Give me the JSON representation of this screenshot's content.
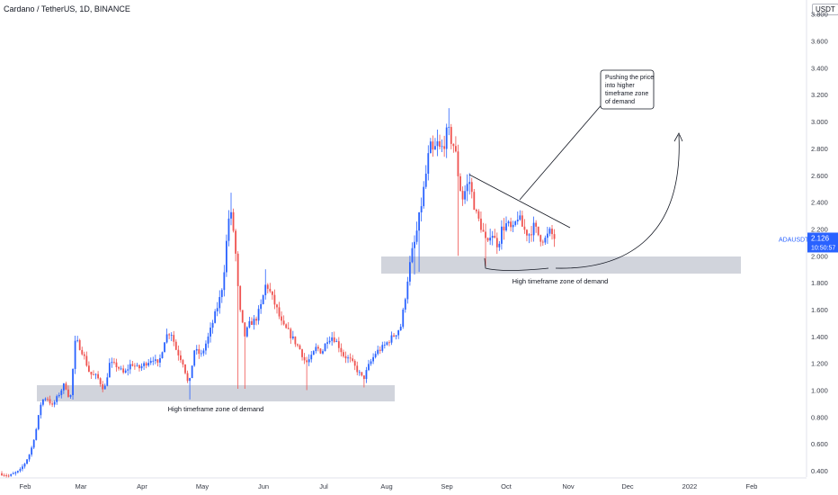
{
  "header": {
    "title": "Cardano / TetherUS, 1D, BINANCE",
    "currency": "USDT"
  },
  "colors": {
    "up": "#2962ff",
    "down": "#ef5350",
    "zone": "#d1d4dc",
    "text": "#131722",
    "axis_text": "#363a45",
    "price_label_bg": "#2962ff"
  },
  "price_label": {
    "symbol": "ADAUSDT",
    "price": "2.126",
    "countdown": "10:50:57"
  },
  "annotations": {
    "zone_lower_label": "High timeframe zone of demand",
    "zone_upper_label": "High timeframe zone of demand",
    "callout_lines": [
      "Pushing the price",
      "into higher",
      "timeframe zone",
      "of demand"
    ]
  },
  "chart_data": {
    "type": "candlestick",
    "title": "Cardano / TetherUS, 1D, BINANCE",
    "y_unit": "USDT",
    "ylim": [
      0.35,
      3.84
    ],
    "yticks": [
      0.4,
      0.6,
      0.8,
      1.0,
      1.2,
      1.4,
      1.6,
      1.8,
      2.0,
      2.2,
      2.4,
      2.6,
      2.8,
      3.0,
      3.2,
      3.4,
      3.6,
      3.8
    ],
    "x_ticks": [
      "Feb",
      "Mar",
      "Apr",
      "May",
      "Jun",
      "Jul",
      "Aug",
      "Sep",
      "Oct",
      "Nov",
      "Dec",
      "2022",
      "Feb"
    ],
    "grid": false,
    "last_price": 2.126,
    "price_path": [
      [
        0,
        0.38
      ],
      [
        10,
        0.36
      ],
      [
        22,
        0.4
      ],
      [
        28,
        0.46
      ],
      [
        34,
        0.54
      ],
      [
        40,
        0.7
      ],
      [
        46,
        0.92
      ],
      [
        52,
        0.95
      ],
      [
        58,
        0.88
      ],
      [
        64,
        0.95
      ],
      [
        72,
        1.05
      ],
      [
        78,
        0.92
      ],
      [
        84,
        1.38
      ],
      [
        92,
        1.28
      ],
      [
        100,
        1.12
      ],
      [
        108,
        1.1
      ],
      [
        116,
        1.0
      ],
      [
        122,
        1.2
      ],
      [
        130,
        1.18
      ],
      [
        138,
        1.12
      ],
      [
        146,
        1.2
      ],
      [
        154,
        1.16
      ],
      [
        162,
        1.2
      ],
      [
        170,
        1.24
      ],
      [
        176,
        1.18
      ],
      [
        184,
        1.4
      ],
      [
        190,
        1.44
      ],
      [
        196,
        1.3
      ],
      [
        204,
        1.2
      ],
      [
        210,
        1.02
      ],
      [
        216,
        1.3
      ],
      [
        224,
        1.26
      ],
      [
        232,
        1.4
      ],
      [
        240,
        1.58
      ],
      [
        246,
        1.72
      ],
      [
        250,
        1.94
      ],
      [
        254,
        2.28
      ],
      [
        258,
        2.3
      ],
      [
        262,
        2.02
      ],
      [
        266,
        1.62
      ],
      [
        272,
        1.4
      ],
      [
        278,
        1.5
      ],
      [
        284,
        1.52
      ],
      [
        290,
        1.62
      ],
      [
        296,
        1.8
      ],
      [
        302,
        1.7
      ],
      [
        308,
        1.6
      ],
      [
        314,
        1.48
      ],
      [
        320,
        1.44
      ],
      [
        326,
        1.38
      ],
      [
        334,
        1.3
      ],
      [
        340,
        1.2
      ],
      [
        346,
        1.24
      ],
      [
        352,
        1.32
      ],
      [
        358,
        1.28
      ],
      [
        364,
        1.38
      ],
      [
        370,
        1.4
      ],
      [
        376,
        1.34
      ],
      [
        382,
        1.26
      ],
      [
        390,
        1.22
      ],
      [
        398,
        1.14
      ],
      [
        404,
        1.08
      ],
      [
        410,
        1.18
      ],
      [
        418,
        1.28
      ],
      [
        426,
        1.32
      ],
      [
        434,
        1.38
      ],
      [
        440,
        1.42
      ],
      [
        446,
        1.48
      ],
      [
        450,
        1.66
      ],
      [
        454,
        1.86
      ],
      [
        458,
        2.02
      ],
      [
        462,
        2.12
      ],
      [
        466,
        2.28
      ],
      [
        470,
        2.44
      ],
      [
        474,
        2.62
      ],
      [
        478,
        2.82
      ],
      [
        482,
        2.76
      ],
      [
        486,
        2.84
      ],
      [
        490,
        2.78
      ],
      [
        494,
        2.84
      ],
      [
        498,
        2.94
      ],
      [
        502,
        2.86
      ],
      [
        506,
        2.8
      ],
      [
        510,
        2.58
      ],
      [
        514,
        2.42
      ],
      [
        518,
        2.5
      ],
      [
        522,
        2.56
      ],
      [
        526,
        2.42
      ],
      [
        530,
        2.3
      ],
      [
        534,
        2.24
      ],
      [
        538,
        2.16
      ],
      [
        542,
        2.06
      ],
      [
        546,
        2.2
      ],
      [
        550,
        2.12
      ],
      [
        554,
        2.08
      ],
      [
        558,
        2.2
      ],
      [
        564,
        2.24
      ],
      [
        570,
        2.18
      ],
      [
        576,
        2.3
      ],
      [
        582,
        2.2
      ],
      [
        588,
        2.16
      ],
      [
        594,
        2.22
      ],
      [
        600,
        2.14
      ],
      [
        606,
        2.12
      ],
      [
        612,
        2.18
      ],
      [
        617,
        2.126
      ]
    ]
  }
}
